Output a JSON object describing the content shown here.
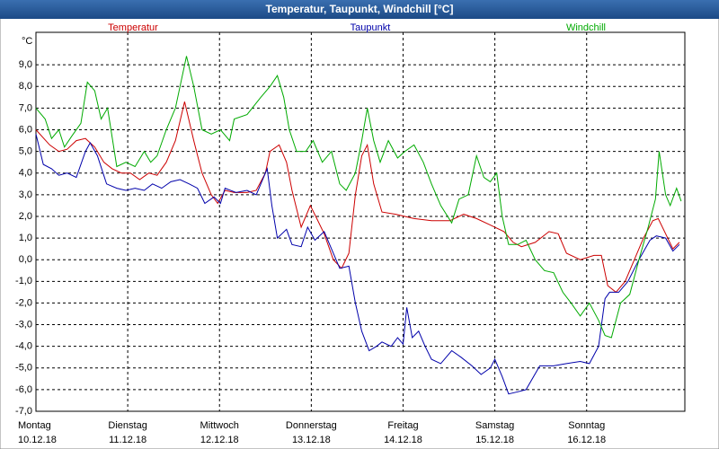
{
  "chart_data": {
    "type": "line",
    "title": "Temperatur, Taupunkt, Windchill [°C]",
    "y_unit": "°C",
    "xlim": [
      0,
      7.07
    ],
    "xticks": [
      {
        "value": 0,
        "label": "Montag"
      },
      {
        "value": 1,
        "label": "Dienstag"
      },
      {
        "value": 2,
        "label": "Mittwoch"
      },
      {
        "value": 3,
        "label": "Donnerstag"
      },
      {
        "value": 4,
        "label": "Freitag"
      },
      {
        "value": 5,
        "label": "Samstag"
      },
      {
        "value": 6,
        "label": "Sonntag"
      }
    ],
    "xtick_dates": [
      "10.12.18",
      "11.12.18",
      "12.12.18",
      "13.12.18",
      "14.12.18",
      "15.12.18",
      "16.12.18"
    ],
    "ylim": [
      -7,
      10.5
    ],
    "yticks": [
      {
        "value": -7,
        "label": "-7,0"
      },
      {
        "value": -6,
        "label": "-6,0"
      },
      {
        "value": -5,
        "label": "-5,0"
      },
      {
        "value": -4,
        "label": "-4,0"
      },
      {
        "value": -3,
        "label": "-3,0"
      },
      {
        "value": -2,
        "label": "-2,0"
      },
      {
        "value": -1,
        "label": "-1,0"
      },
      {
        "value": 0,
        "label": "0,0"
      },
      {
        "value": 1,
        "label": "1,0"
      },
      {
        "value": 2,
        "label": "2,0"
      },
      {
        "value": 3,
        "label": "3,0"
      },
      {
        "value": 4,
        "label": "4,0"
      },
      {
        "value": 5,
        "label": "5,0"
      },
      {
        "value": 6,
        "label": "6,0"
      },
      {
        "value": 7,
        "label": "7,0"
      },
      {
        "value": 8,
        "label": "8,0"
      },
      {
        "value": 9,
        "label": "9,0"
      }
    ],
    "grid": true,
    "series": [
      {
        "name": "Temperatur",
        "color": "#cc0000",
        "x": [
          0,
          0.15,
          0.25,
          0.34,
          0.44,
          0.54,
          0.64,
          0.74,
          0.83,
          0.93,
          1.03,
          1.13,
          1.23,
          1.32,
          1.42,
          1.52,
          1.62,
          1.72,
          1.81,
          1.91,
          1.98,
          2.06,
          2.16,
          2.3,
          2.4,
          2.5,
          2.55,
          2.65,
          2.73,
          2.79,
          2.89,
          2.99,
          3.06,
          3.14,
          3.24,
          3.33,
          3.41,
          3.48,
          3.55,
          3.61,
          3.68,
          3.77,
          3.92,
          4.12,
          4.31,
          4.51,
          4.66,
          4.8,
          4.95,
          5.1,
          5.2,
          5.29,
          5.44,
          5.59,
          5.69,
          5.78,
          5.93,
          6.08,
          6.16,
          6.23,
          6.32,
          6.42,
          6.52,
          6.62,
          6.72,
          6.78,
          6.86,
          6.94,
          7.01
        ],
        "values": [
          6.0,
          5.3,
          5.0,
          5.1,
          5.5,
          5.6,
          5.2,
          4.5,
          4.2,
          4.0,
          4.0,
          3.7,
          4.0,
          3.9,
          4.5,
          5.5,
          7.3,
          5.5,
          4.0,
          3.0,
          2.6,
          3.2,
          3.1,
          3.1,
          3.2,
          4.0,
          5.0,
          5.3,
          4.5,
          3.2,
          1.5,
          2.5,
          1.9,
          1.2,
          0.0,
          -0.4,
          0.3,
          3.0,
          4.8,
          5.3,
          3.5,
          2.2,
          2.1,
          1.9,
          1.8,
          1.8,
          2.1,
          1.9,
          1.6,
          1.3,
          0.8,
          0.6,
          0.8,
          1.3,
          1.2,
          0.3,
          0.0,
          0.2,
          0.2,
          -1.2,
          -1.5,
          -1.0,
          0.0,
          1.0,
          1.8,
          1.9,
          1.2,
          0.5,
          0.8
        ]
      },
      {
        "name": "Taupunkt",
        "color": "#0000aa",
        "x": [
          0,
          0.08,
          0.17,
          0.25,
          0.34,
          0.44,
          0.54,
          0.59,
          0.67,
          0.77,
          0.88,
          0.98,
          1.08,
          1.18,
          1.27,
          1.37,
          1.47,
          1.57,
          1.67,
          1.76,
          1.84,
          1.94,
          2.01,
          2.06,
          2.18,
          2.3,
          2.4,
          2.52,
          2.57,
          2.63,
          2.73,
          2.79,
          2.89,
          2.96,
          3.04,
          3.14,
          3.22,
          3.31,
          3.41,
          3.48,
          3.55,
          3.63,
          3.71,
          3.77,
          3.87,
          3.94,
          4.0,
          4.04,
          4.1,
          4.17,
          4.24,
          4.31,
          4.41,
          4.53,
          4.63,
          4.75,
          4.85,
          4.95,
          5.0,
          5.08,
          5.15,
          5.25,
          5.34,
          5.49,
          5.64,
          5.78,
          5.93,
          6.03,
          6.13,
          6.2,
          6.25,
          6.35,
          6.45,
          6.57,
          6.69,
          6.76,
          6.86,
          6.94,
          7.01
        ],
        "values": [
          5.8,
          4.4,
          4.2,
          3.9,
          4.0,
          3.8,
          5.0,
          5.4,
          4.8,
          3.5,
          3.3,
          3.2,
          3.3,
          3.2,
          3.5,
          3.3,
          3.6,
          3.7,
          3.5,
          3.3,
          2.6,
          2.9,
          2.6,
          3.3,
          3.1,
          3.2,
          3.0,
          4.2,
          2.5,
          1.0,
          1.4,
          0.7,
          0.6,
          1.5,
          0.9,
          1.3,
          0.5,
          -0.4,
          -0.3,
          -2.0,
          -3.3,
          -4.2,
          -4.0,
          -3.8,
          -4.0,
          -3.6,
          -3.9,
          -2.2,
          -3.6,
          -3.3,
          -4.0,
          -4.6,
          -4.8,
          -4.2,
          -4.5,
          -4.9,
          -5.3,
          -5.0,
          -4.6,
          -5.4,
          -6.2,
          -6.1,
          -6.0,
          -4.9,
          -4.9,
          -4.8,
          -4.7,
          -4.8,
          -4.0,
          -1.8,
          -1.5,
          -1.5,
          -1.0,
          0.0,
          0.9,
          1.1,
          1.0,
          0.4,
          0.7
        ]
      },
      {
        "name": "Windchill",
        "color": "#00aa00",
        "x": [
          0,
          0.1,
          0.17,
          0.25,
          0.31,
          0.39,
          0.49,
          0.56,
          0.64,
          0.71,
          0.78,
          0.88,
          0.98,
          1.08,
          1.18,
          1.25,
          1.32,
          1.42,
          1.52,
          1.57,
          1.64,
          1.72,
          1.81,
          1.91,
          2.01,
          2.11,
          2.16,
          2.3,
          2.45,
          2.55,
          2.63,
          2.7,
          2.76,
          2.84,
          2.94,
          3.02,
          3.12,
          3.22,
          3.31,
          3.38,
          3.48,
          3.55,
          3.61,
          3.68,
          3.75,
          3.84,
          3.94,
          4.02,
          4.12,
          4.22,
          4.31,
          4.41,
          4.53,
          4.61,
          4.71,
          4.8,
          4.88,
          4.95,
          5.02,
          5.08,
          5.15,
          5.25,
          5.34,
          5.44,
          5.54,
          5.64,
          5.74,
          5.83,
          5.93,
          6.03,
          6.13,
          6.2,
          6.27,
          6.37,
          6.47,
          6.57,
          6.67,
          6.75,
          6.79,
          6.86,
          6.91,
          6.98,
          7.03
        ],
        "values": [
          7.0,
          6.5,
          5.6,
          6.0,
          5.2,
          5.7,
          6.3,
          8.2,
          7.8,
          6.5,
          7.0,
          4.3,
          4.5,
          4.3,
          5.0,
          4.5,
          4.8,
          6.0,
          7.0,
          8.0,
          9.4,
          8.0,
          6.0,
          5.8,
          6.0,
          5.5,
          6.5,
          6.7,
          7.5,
          8.0,
          8.5,
          7.5,
          6.0,
          5.0,
          5.0,
          5.5,
          4.5,
          5.0,
          3.5,
          3.2,
          4.0,
          5.5,
          7.0,
          5.5,
          4.5,
          5.5,
          4.7,
          5.0,
          5.3,
          4.5,
          3.5,
          2.5,
          1.7,
          2.8,
          3.0,
          4.8,
          3.8,
          3.6,
          4.0,
          2.0,
          0.7,
          0.7,
          0.9,
          0.0,
          -0.5,
          -0.6,
          -1.5,
          -2.0,
          -2.6,
          -2.0,
          -2.8,
          -3.5,
          -3.6,
          -2.0,
          -1.6,
          0.0,
          1.5,
          2.8,
          5.0,
          3.0,
          2.5,
          3.3,
          2.7
        ]
      }
    ]
  }
}
